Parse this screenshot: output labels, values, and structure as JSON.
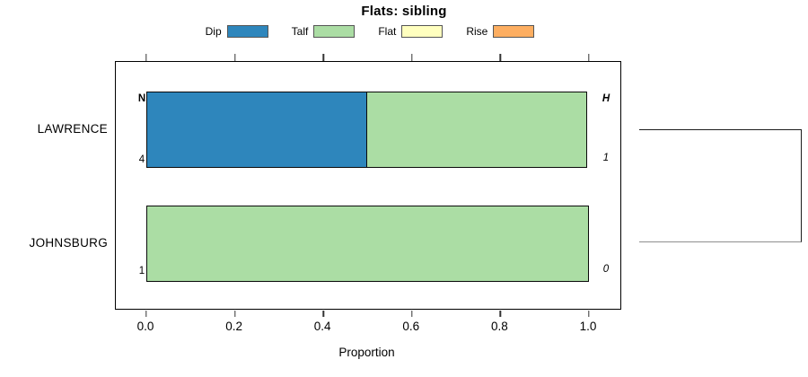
{
  "chart_data": {
    "type": "bar",
    "orientation": "horizontal",
    "stacked": true,
    "title": "Flats: sibling",
    "xlabel": "Proportion",
    "xlim": [
      0,
      1
    ],
    "xtick_values": [
      0,
      0.2,
      0.4,
      0.6,
      0.8,
      1.0
    ],
    "xtick_labels": [
      "0.0",
      "0.2",
      "0.4",
      "0.6",
      "0.8",
      "1.0"
    ],
    "grid": false,
    "categories": [
      "LAWRENCE",
      "JOHNSBURG"
    ],
    "series": [
      {
        "name": "Dip",
        "color": "#2E86BC",
        "values": [
          0.5,
          0
        ]
      },
      {
        "name": "Talf",
        "color": "#ABDDA4",
        "values": [
          0.5,
          1.0
        ]
      },
      {
        "name": "Flat",
        "color": "#FFFFBF",
        "values": [
          0,
          0
        ]
      },
      {
        "name": "Rise",
        "color": "#FDAE61",
        "values": [
          0,
          0
        ]
      }
    ],
    "legend": {
      "position": "top",
      "entries": [
        {
          "label": "Dip",
          "color": "#2E86BC"
        },
        {
          "label": "Talf",
          "color": "#ABDDA4"
        },
        {
          "label": "Flat",
          "color": "#FFFFBF"
        },
        {
          "label": "Rise",
          "color": "#FDAE61"
        }
      ]
    },
    "annotations": {
      "left_header": "N",
      "right_header": "H",
      "rows": [
        {
          "category": "LAWRENCE",
          "left": "4",
          "right": "1"
        },
        {
          "category": "JOHNSBURG",
          "left": "1",
          "right": "0"
        }
      ]
    },
    "right_dendrogram": {
      "present": true,
      "joins": [
        "LAWRENCE",
        "JOHNSBURG"
      ]
    }
  }
}
